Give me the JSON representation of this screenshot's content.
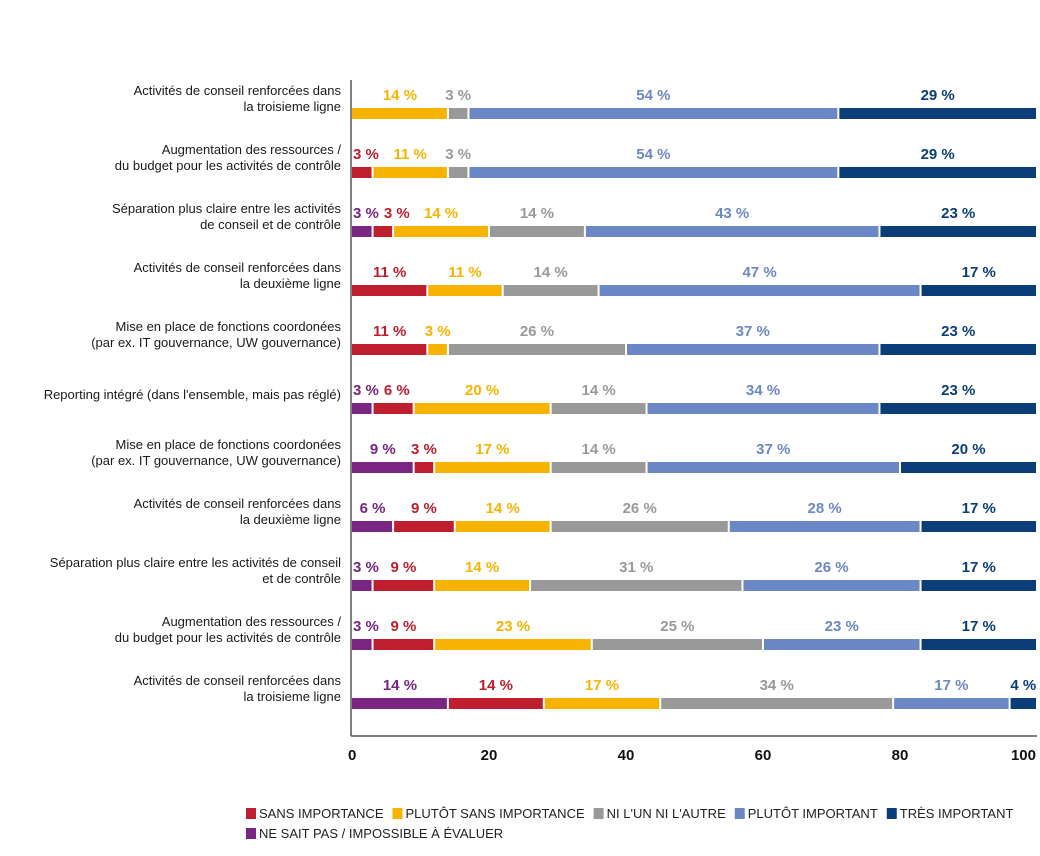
{
  "chart_data": {
    "type": "bar",
    "orientation": "horizontal",
    "stacked": true,
    "categories": [
      [
        "Activités de conseil renforcées dans",
        "la troisieme ligne"
      ],
      [
        "Augmentation des ressources /",
        "du budget pour les activités de contrôle"
      ],
      [
        "Séparation plus claire entre les activités",
        "de conseil et de contrôle"
      ],
      [
        "Activités de conseil renforcées dans",
        "la deuxième ligne"
      ],
      [
        "Mise en place de fonctions coordonées",
        "(par ex. IT gouvernance, UW gouvernance)"
      ],
      [
        "Reporting intégré (dans l'ensemble, mais pas réglé)"
      ],
      [
        "Mise en place de fonctions coordonées",
        "(par ex. IT gouvernance, UW gouvernance)"
      ],
      [
        "Activités de conseil renforcées dans",
        "la deuxième ligne"
      ],
      [
        "Séparation plus claire entre les activités de conseil",
        "et de contrôle"
      ],
      [
        "Augmentation des ressources /",
        "du budget pour les activités de contrôle"
      ],
      [
        "Activités de conseil renforcées dans",
        "la troisieme ligne"
      ]
    ],
    "series": [
      {
        "name": "NE SAIT PAS / IMPOSSIBLE À ÉVALUER",
        "color": "#7a2582",
        "values": [
          0,
          0,
          3,
          0,
          0,
          3,
          9,
          6,
          3,
          3,
          14
        ]
      },
      {
        "name": "SANS IMPORTANCE",
        "color": "#be1e2d",
        "values": [
          0,
          3,
          3,
          11,
          11,
          6,
          3,
          9,
          9,
          9,
          14
        ]
      },
      {
        "name": "PLUTÔT SANS IMPORTANCE",
        "color": "#f8b300",
        "values": [
          14,
          11,
          14,
          11,
          3,
          20,
          17,
          14,
          14,
          23,
          17
        ]
      },
      {
        "name": "NI L'UN NI L'AUTRE",
        "color": "#999999",
        "values": [
          3,
          3,
          14,
          14,
          26,
          14,
          14,
          26,
          31,
          25,
          34
        ]
      },
      {
        "name": "PLUTÔT IMPORTANT",
        "color": "#6c87c6",
        "values": [
          54,
          54,
          43,
          47,
          37,
          34,
          37,
          28,
          26,
          23,
          17
        ]
      },
      {
        "name": "TRÈS IMPORTANT",
        "color": "#0b3e78",
        "values": [
          29,
          29,
          23,
          17,
          23,
          23,
          20,
          17,
          17,
          17,
          4
        ]
      }
    ],
    "value_suffix": " %",
    "xlim": [
      0,
      100
    ],
    "xticks": [
      "0",
      "20",
      "40",
      "60",
      "80",
      "100"
    ],
    "grid": false,
    "legend_position": "bottom",
    "legend_order": [
      1,
      2,
      3,
      4,
      5,
      0
    ]
  }
}
